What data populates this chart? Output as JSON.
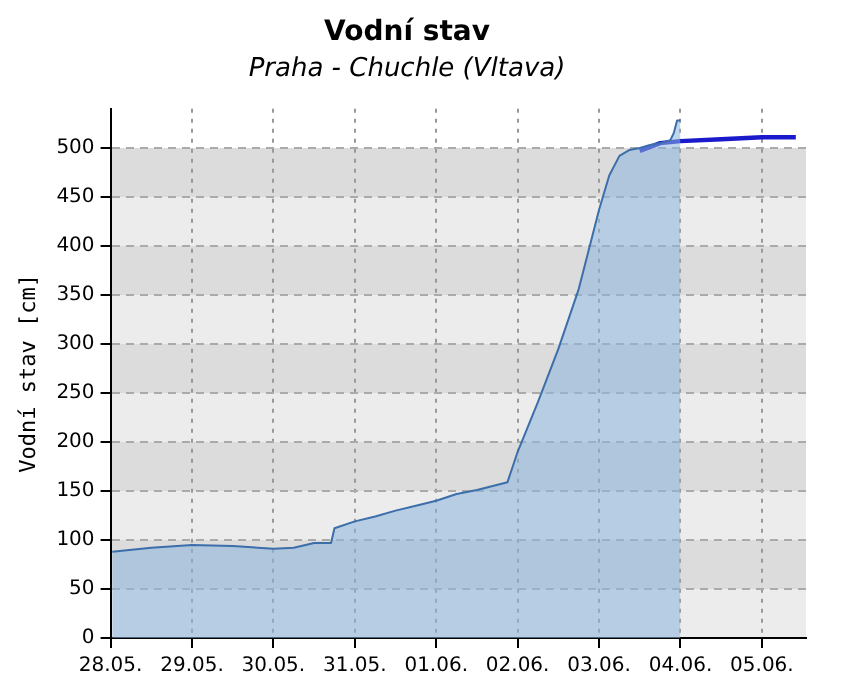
{
  "chart_data": {
    "type": "area",
    "title": "Vodní stav",
    "subtitle": "Praha - Chuchle (Vltava)",
    "ylabel": "Vodní stav [cm]",
    "xlim": [
      "--05-28",
      "--06-05T13:00"
    ],
    "ylim": [
      0,
      540
    ],
    "xticks": [
      {
        "value": "--05-28",
        "label": "28.05."
      },
      {
        "value": "--05-29",
        "label": "29.05."
      },
      {
        "value": "--05-30",
        "label": "30.05."
      },
      {
        "value": "--05-31",
        "label": "31.05."
      },
      {
        "value": "--06-01",
        "label": "01.06."
      },
      {
        "value": "--06-02",
        "label": "02.06."
      },
      {
        "value": "--06-03",
        "label": "03.06."
      },
      {
        "value": "--06-04",
        "label": "04.06."
      },
      {
        "value": "--06-05",
        "label": "05.06."
      }
    ],
    "yticks": [
      0,
      50,
      100,
      150,
      200,
      250,
      300,
      350,
      400,
      450,
      500
    ],
    "grid": true,
    "legend": false,
    "series": [
      {
        "type": "area",
        "color": "#3c6eaa",
        "x": [
          "--05-28T00:30",
          "--05-28T12:00",
          "--05-29T00:00",
          "--05-29T12:00",
          "--05-30T00:00",
          "--05-30T06:00",
          "--05-30T12:00",
          "--05-30T17:00",
          "--05-30T18:00",
          "--05-31T00:00",
          "--05-31T06:00",
          "--05-31T12:00",
          "--05-31T18:00",
          "--06-01T00:00",
          "--06-01T06:00",
          "--06-01T12:00",
          "--06-01T21:00",
          "--06-02T00:00",
          "--06-02T06:00",
          "--06-02T12:00",
          "--06-02T18:00",
          "--06-03T00:00",
          "--06-03T03:00",
          "--06-03T06:00",
          "--06-03T09:00",
          "--06-03T12:00",
          "--06-03T15:00",
          "--06-03T18:00",
          "--06-03T21:00",
          "--06-03T22:00",
          "--06-03T23:00",
          "--06-04T00:00"
        ],
        "values": [
          88,
          92,
          95,
          94,
          91,
          92,
          97,
          97,
          112,
          119,
          124,
          130,
          135,
          140,
          147,
          151,
          159,
          190,
          241,
          295,
          356,
          437,
          472,
          492,
          498,
          500,
          503,
          505,
          508,
          515,
          528,
          528
        ]
      },
      {
        "type": "line",
        "color": "#1a1acc",
        "x": [
          "--06-03T12:00",
          "--06-03T18:00",
          "--06-04T00:00",
          "--06-04T12:00",
          "--06-05T00:00",
          "--06-05T10:00"
        ],
        "values": [
          497,
          505,
          507,
          509,
          511,
          511
        ]
      }
    ]
  }
}
